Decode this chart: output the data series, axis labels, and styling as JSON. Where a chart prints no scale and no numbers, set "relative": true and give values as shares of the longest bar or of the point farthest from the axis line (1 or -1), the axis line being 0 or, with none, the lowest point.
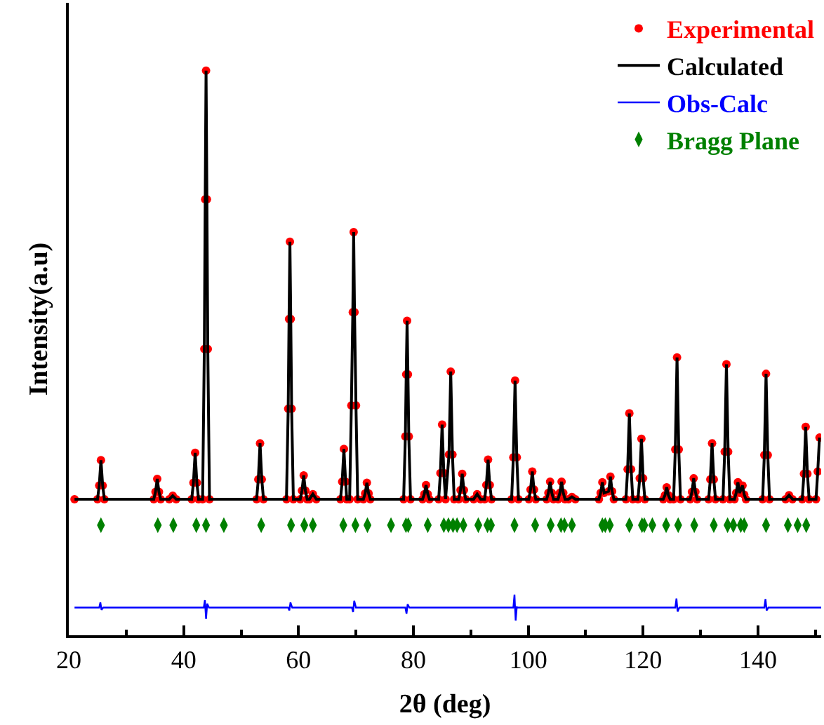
{
  "chart_data": {
    "type": "scatter",
    "relative": true,
    "xlabel": "2θ (deg)",
    "ylabel": "Intensity(a.u)",
    "xlim": [
      20,
      151
    ],
    "xticks": [
      20,
      40,
      60,
      80,
      100,
      120,
      140
    ],
    "legend": "top right",
    "tick_labels": "x",
    "x": [
      21,
      25,
      25.3,
      25.6,
      25.9,
      26.2,
      34.8,
      35.1,
      35.4,
      35.7,
      36,
      37.5,
      38.1,
      38.7,
      41.4,
      41.7,
      42,
      42.3,
      42.6,
      43.3,
      43.6,
      43.75,
      43.9,
      44.05,
      44.2,
      44.5,
      52.7,
      53,
      53.3,
      53.6,
      53.9,
      57.9,
      58.2,
      58.35,
      58.5,
      58.65,
      58.8,
      59.1,
      60.3,
      60.6,
      60.9,
      61.2,
      61.5,
      61.9,
      62.5,
      63.1,
      67.3,
      67.6,
      67.9,
      68.2,
      68.4,
      68.9,
      69.2,
      69.45,
      69.6,
      69.75,
      70,
      70.3,
      71.3,
      71.6,
      71.9,
      72.2,
      72.5,
      78.3,
      78.6,
      78.75,
      78.9,
      79.05,
      79.2,
      79.5,
      81.6,
      81.9,
      82.2,
      82.5,
      82.8,
      84.4,
      84.7,
      85,
      85.3,
      85.6,
      86.2,
      86.5,
      86.8,
      87.1,
      87.9,
      88.2,
      88.5,
      88.8,
      89.1,
      90.5,
      91.1,
      91.7,
      92.4,
      92.7,
      93,
      93.3,
      93.6,
      97.1,
      97.4,
      97.7,
      98,
      98.3,
      100.1,
      100.4,
      100.7,
      101,
      101.3,
      103.2,
      103.5,
      103.8,
      104.1,
      104.4,
      105.2,
      105.5,
      105.8,
      106.1,
      106.4,
      107,
      107.6,
      108.2,
      112.3,
      112.6,
      112.9,
      113.2,
      114,
      114.3,
      114.6,
      114.9,
      117,
      117.3,
      117.6,
      117.9,
      118.2,
      119.1,
      119.4,
      119.7,
      120,
      120.3,
      123.5,
      123.8,
      124.1,
      124.4,
      124.7,
      125.3,
      125.6,
      125.9,
      126.2,
      126.5,
      128.2,
      128.5,
      128.8,
      129.1,
      129.4,
      131.4,
      131.7,
      132,
      132.3,
      132.6,
      133.9,
      134.2,
      134.5,
      134.8,
      135.1,
      135.9,
      136.2,
      136.5,
      136.8,
      137.3,
      137.6,
      137.9,
      140.8,
      141.1,
      141.4,
      141.7,
      142,
      144.8,
      145.4,
      146,
      147.7,
      148,
      148.3,
      148.6,
      148.9,
      150.1,
      150.4,
      150.7
    ],
    "series": [
      {
        "name": "Experimental",
        "marker": "circle",
        "color": "#ff0000",
        "values": [
          0.241,
          0.241,
          0.265,
          0.31,
          0.265,
          0.241,
          0.241,
          0.254,
          0.277,
          0.254,
          0.241,
          0.241,
          0.247,
          0.241,
          0.241,
          0.27,
          0.323,
          0.27,
          0.241,
          0.241,
          0.507,
          0.772,
          1.0,
          0.772,
          0.507,
          0.241,
          0.241,
          0.276,
          0.34,
          0.276,
          0.241,
          0.241,
          0.401,
          0.56,
          0.697,
          0.56,
          0.401,
          0.241,
          0.241,
          0.256,
          0.283,
          0.256,
          0.241,
          0.241,
          0.25,
          0.241,
          0.241,
          0.272,
          0.33,
          0.272,
          0.241,
          0.241,
          0.407,
          0.572,
          0.714,
          0.572,
          0.407,
          0.241,
          0.241,
          0.251,
          0.27,
          0.251,
          0.241,
          0.241,
          0.352,
          0.462,
          0.557,
          0.462,
          0.352,
          0.241,
          0.241,
          0.25,
          0.266,
          0.25,
          0.241,
          0.241,
          0.287,
          0.373,
          0.287,
          0.241,
          0.32,
          0.467,
          0.32,
          0.241,
          0.241,
          0.257,
          0.286,
          0.257,
          0.241,
          0.241,
          0.25,
          0.241,
          0.241,
          0.266,
          0.311,
          0.266,
          0.241,
          0.241,
          0.315,
          0.451,
          0.315,
          0.241,
          0.241,
          0.258,
          0.29,
          0.258,
          0.241,
          0.241,
          0.252,
          0.272,
          0.252,
          0.241,
          0.241,
          0.252,
          0.272,
          0.252,
          0.241,
          0.241,
          0.245,
          0.241,
          0.241,
          0.252,
          0.271,
          0.252,
          0.255,
          0.281,
          0.255,
          0.241,
          0.241,
          0.294,
          0.393,
          0.294,
          0.241,
          0.241,
          0.278,
          0.348,
          0.278,
          0.241,
          0.241,
          0.248,
          0.262,
          0.248,
          0.241,
          0.241,
          0.329,
          0.492,
          0.329,
          0.241,
          0.241,
          0.254,
          0.278,
          0.254,
          0.241,
          0.241,
          0.276,
          0.34,
          0.276,
          0.241,
          0.241,
          0.325,
          0.48,
          0.325,
          0.241,
          0.241,
          0.252,
          0.271,
          0.252,
          0.265,
          0.249,
          0.241,
          0.241,
          0.319,
          0.463,
          0.319,
          0.241,
          0.241,
          0.248,
          0.241,
          0.241,
          0.286,
          0.369,
          0.286,
          0.241,
          0.241,
          0.29,
          0.35
        ]
      },
      {
        "name": "Calculated",
        "type": "line",
        "marker": "none",
        "color": "#000000",
        "values": [
          0.241,
          0.241,
          0.265,
          0.31,
          0.265,
          0.241,
          0.241,
          0.254,
          0.277,
          0.254,
          0.241,
          0.241,
          0.247,
          0.241,
          0.241,
          0.27,
          0.323,
          0.27,
          0.241,
          0.241,
          0.507,
          0.772,
          1.0,
          0.772,
          0.507,
          0.241,
          0.241,
          0.276,
          0.34,
          0.276,
          0.241,
          0.241,
          0.401,
          0.56,
          0.697,
          0.56,
          0.401,
          0.241,
          0.241,
          0.256,
          0.283,
          0.256,
          0.241,
          0.241,
          0.25,
          0.241,
          0.241,
          0.272,
          0.33,
          0.272,
          0.241,
          0.241,
          0.407,
          0.572,
          0.714,
          0.572,
          0.407,
          0.241,
          0.241,
          0.251,
          0.27,
          0.251,
          0.241,
          0.241,
          0.352,
          0.462,
          0.557,
          0.462,
          0.352,
          0.241,
          0.241,
          0.25,
          0.266,
          0.25,
          0.241,
          0.241,
          0.287,
          0.373,
          0.287,
          0.241,
          0.32,
          0.467,
          0.32,
          0.241,
          0.241,
          0.257,
          0.286,
          0.257,
          0.241,
          0.241,
          0.25,
          0.241,
          0.241,
          0.266,
          0.311,
          0.266,
          0.241,
          0.241,
          0.315,
          0.451,
          0.315,
          0.241,
          0.241,
          0.258,
          0.29,
          0.258,
          0.241,
          0.241,
          0.252,
          0.272,
          0.252,
          0.241,
          0.241,
          0.252,
          0.272,
          0.252,
          0.241,
          0.241,
          0.245,
          0.241,
          0.241,
          0.252,
          0.271,
          0.252,
          0.255,
          0.281,
          0.255,
          0.241,
          0.241,
          0.294,
          0.393,
          0.294,
          0.241,
          0.241,
          0.278,
          0.348,
          0.278,
          0.241,
          0.241,
          0.248,
          0.262,
          0.248,
          0.241,
          0.241,
          0.329,
          0.492,
          0.329,
          0.241,
          0.241,
          0.254,
          0.278,
          0.254,
          0.241,
          0.241,
          0.276,
          0.34,
          0.276,
          0.241,
          0.241,
          0.325,
          0.48,
          0.325,
          0.241,
          0.241,
          0.252,
          0.271,
          0.252,
          0.265,
          0.249,
          0.241,
          0.241,
          0.319,
          0.463,
          0.319,
          0.241,
          0.241,
          0.248,
          0.241,
          0.241,
          0.286,
          0.369,
          0.286,
          0.241,
          0.241,
          0.29,
          0.35
        ]
      },
      {
        "name": "Obs-Calc",
        "type": "line",
        "marker": "none",
        "color": "#0000ff",
        "x": [
          21,
          25.3,
          25.5,
          25.7,
          26,
          43.5,
          43.7,
          43.9,
          44.1,
          44.4,
          58.2,
          58.4,
          58.6,
          58.9,
          69.3,
          69.5,
          69.7,
          70,
          78.6,
          78.8,
          79,
          79.3,
          97.4,
          97.6,
          97.8,
          98,
          98.3,
          125.6,
          125.8,
          126,
          126.3,
          141.1,
          141.3,
          141.5,
          141.8,
          151
        ],
        "values": [
          0.049,
          0.049,
          0.058,
          0.045,
          0.049,
          0.049,
          0.062,
          0.029,
          0.056,
          0.049,
          0.049,
          0.044,
          0.058,
          0.049,
          0.049,
          0.041,
          0.061,
          0.049,
          0.049,
          0.038,
          0.055,
          0.049,
          0.049,
          0.072,
          0.026,
          0.05,
          0.049,
          0.049,
          0.065,
          0.042,
          0.049,
          0.049,
          0.064,
          0.044,
          0.049,
          0.049
        ]
      },
      {
        "name": "Bragg Plane",
        "type": "scatter",
        "marker": "diamond",
        "color": "#008000",
        "x": [
          25.6,
          35.5,
          38.2,
          42.2,
          43.9,
          47.0,
          53.5,
          58.7,
          61.0,
          62.5,
          67.8,
          69.9,
          72.0,
          76.1,
          78.7,
          79.1,
          82.5,
          85.3,
          86.1,
          86.9,
          87.6,
          88.7,
          91.3,
          92.9,
          93.5,
          97.6,
          101.2,
          103.9,
          105.7,
          106.3,
          107.6,
          112.9,
          113.4,
          114.2,
          117.6,
          119.8,
          120.2,
          121.6,
          124.0,
          126.1,
          128.9,
          132.3,
          134.7,
          135.7,
          137.0,
          137.6,
          141.4,
          145.2,
          146.9,
          148.4
        ],
        "values": [
          0.195,
          0.195,
          0.195,
          0.195,
          0.195,
          0.195,
          0.195,
          0.195,
          0.195,
          0.195,
          0.195,
          0.195,
          0.195,
          0.195,
          0.195,
          0.195,
          0.195,
          0.195,
          0.195,
          0.195,
          0.195,
          0.195,
          0.195,
          0.195,
          0.195,
          0.195,
          0.195,
          0.195,
          0.195,
          0.195,
          0.195,
          0.195,
          0.195,
          0.195,
          0.195,
          0.195,
          0.195,
          0.195,
          0.195,
          0.195,
          0.195,
          0.195,
          0.195,
          0.195,
          0.195,
          0.195,
          0.195,
          0.195,
          0.195,
          0.195
        ]
      }
    ]
  }
}
